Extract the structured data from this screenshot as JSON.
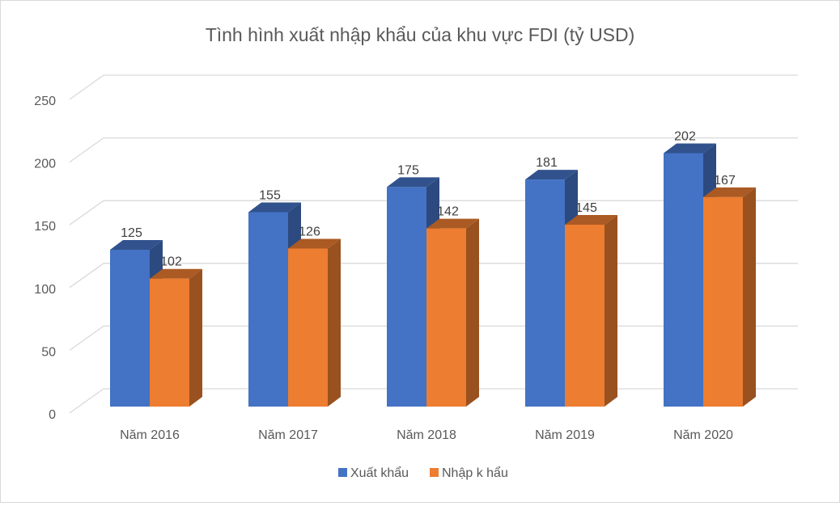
{
  "chart_data": {
    "type": "bar",
    "title": "Tình hình xuất nhập khẩu của khu vực FDI (tỷ USD)",
    "categories": [
      "Năm 2016",
      "Năm 2017",
      "Năm 2018",
      "Năm 2019",
      "Năm 2020"
    ],
    "series": [
      {
        "name": "Xuất khẩu",
        "values": [
          125,
          155,
          175,
          181,
          202
        ],
        "color": "#4472C4"
      },
      {
        "name": "Nhập k hẩu",
        "values": [
          102,
          126,
          142,
          145,
          167
        ],
        "color": "#ED7D31"
      }
    ],
    "yticks": [
      "0",
      "50",
      "100",
      "150",
      "200",
      "250"
    ],
    "ylim": [
      0,
      250
    ],
    "grid": true,
    "style": "3d-clustered-column",
    "legend": "bottom",
    "data_labels": true
  }
}
